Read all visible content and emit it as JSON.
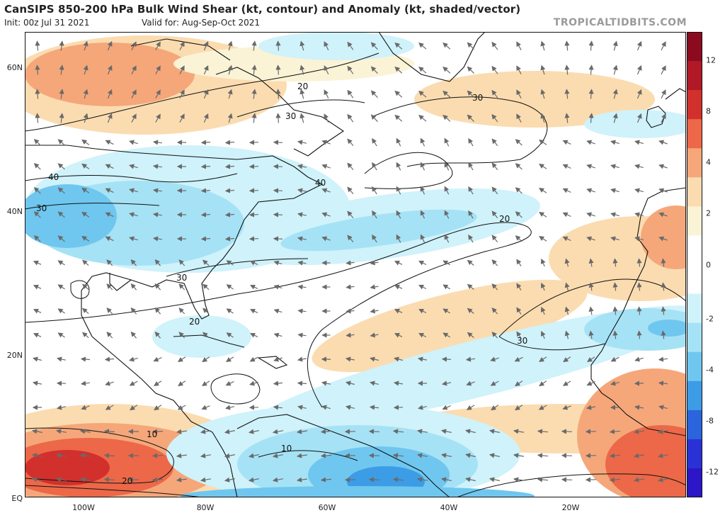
{
  "header": {
    "title": "CanSIPS 850-200 hPa Bulk Wind Shear (kt, contour) and Anomaly (kt, shaded/vector)",
    "init": "Init: 00z Jul 31 2021",
    "valid": "Valid for: Aug-Sep-Oct 2021",
    "brand": "TROPICALTIDBITS.COM"
  },
  "map": {
    "lat_labels": [
      "60N",
      "40N",
      "20N",
      "EQ"
    ],
    "lon_labels": [
      "100W",
      "80W",
      "60W",
      "40W",
      "20W"
    ],
    "contour_labels": [
      "20",
      "30",
      "30",
      "40",
      "30",
      "40",
      "20",
      "30",
      "20",
      "30",
      "10",
      "20",
      "10"
    ]
  },
  "colorbar": {
    "labels": [
      "12",
      "8",
      "4",
      "2",
      "0",
      "-2",
      "-4",
      "-8",
      "-12"
    ],
    "colors": [
      "#8c0a1e",
      "#b11927",
      "#d2302c",
      "#ec6848",
      "#f5a77a",
      "#fbdcb0",
      "#fbf3d6",
      "#ffffff",
      "#ffffff",
      "#cff2fb",
      "#a6e2f5",
      "#6fc7ef",
      "#3d9ce6",
      "#2b64dc",
      "#2a32d6",
      "#2c16c8"
    ]
  }
}
